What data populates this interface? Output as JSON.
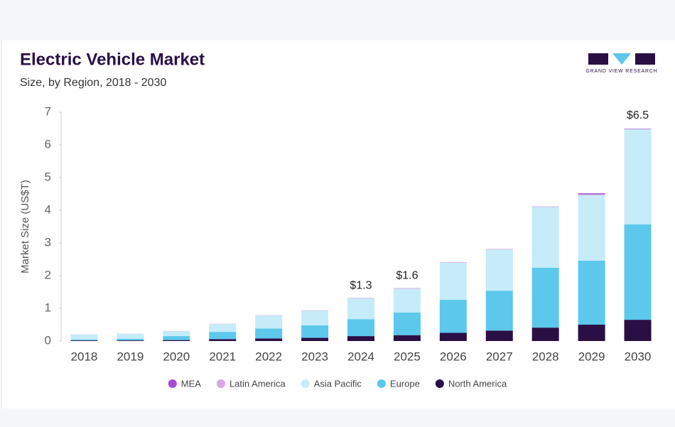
{
  "chart_data": {
    "type": "stacked-bar",
    "title": "Electric Vehicle Market",
    "subtitle": "Size, by Region, 2018 - 2030",
    "brand": "GRAND VIEW RESEARCH",
    "y_label": "Market Size (US$T)",
    "categories": [
      "2018",
      "2019",
      "2020",
      "2021",
      "2022",
      "2023",
      "2024",
      "2025",
      "2026",
      "2027",
      "2028",
      "2029",
      "2030"
    ],
    "series": [
      {
        "name": "North America",
        "color": "#2a0f45",
        "values": [
          0.02,
          0.02,
          0.03,
          0.06,
          0.08,
          0.1,
          0.15,
          0.18,
          0.25,
          0.32,
          0.41,
          0.5,
          0.65
        ]
      },
      {
        "name": "Europe",
        "color": "#5bc8ec",
        "values": [
          0.03,
          0.05,
          0.12,
          0.22,
          0.3,
          0.38,
          0.52,
          0.69,
          1.01,
          1.22,
          1.83,
          1.96,
          2.92
        ]
      },
      {
        "name": "Asia Pacific",
        "color": "#c5ecf8",
        "values": [
          0.15,
          0.15,
          0.15,
          0.24,
          0.4,
          0.45,
          0.63,
          0.73,
          1.13,
          1.26,
          1.86,
          2.0,
          2.91
        ]
      },
      {
        "name": "Latin America",
        "color": "#d6a8e4",
        "values": [
          0.002,
          0.002,
          0.003,
          0.003,
          0.005,
          0.005,
          0.01,
          0.01,
          0.01,
          0.01,
          0.01,
          0.03,
          0.01
        ]
      },
      {
        "name": "MEA",
        "color": "#a64bd1",
        "values": [
          0.001,
          0.001,
          0.002,
          0.002,
          0.003,
          0.003,
          0.005,
          0.005,
          0.005,
          0.005,
          0.005,
          0.03,
          0.01
        ]
      }
    ],
    "totals": [
      null,
      null,
      null,
      null,
      null,
      null,
      1.3,
      1.6,
      null,
      null,
      null,
      null,
      6.5
    ],
    "total_labels": [
      null,
      null,
      null,
      null,
      null,
      null,
      "$1.3",
      "$1.6",
      null,
      null,
      null,
      null,
      "$6.5"
    ],
    "ylim": [
      0,
      7
    ],
    "yticks": [
      0,
      1,
      2,
      3,
      4,
      5,
      6,
      7
    ],
    "grid": false
  }
}
